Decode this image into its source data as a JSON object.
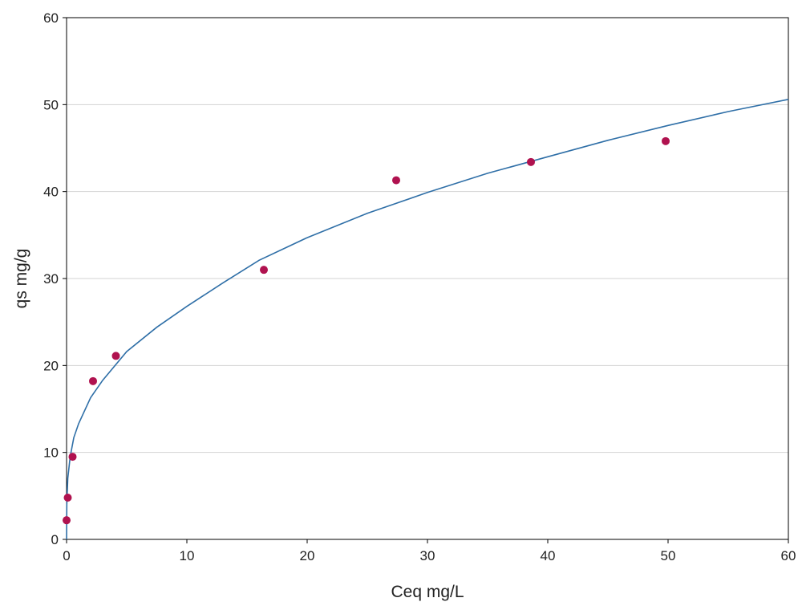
{
  "chart_data": {
    "type": "scatter",
    "xlabel": "Ceq mg/L",
    "ylabel": "qs mg/g",
    "xlim": [
      0,
      60
    ],
    "ylim": [
      0,
      60
    ],
    "xticks": [
      "0",
      "10",
      "20",
      "30",
      "40",
      "50",
      "60"
    ],
    "yticks": [
      "0",
      "10",
      "20",
      "30",
      "40",
      "50",
      "60"
    ],
    "grid": "horizontal",
    "legend": "none",
    "series": [
      {
        "kind": "points",
        "color": "#b0124f",
        "points": [
          [
            0.0,
            2.2
          ],
          [
            0.1,
            4.8
          ],
          [
            0.5,
            9.5
          ],
          [
            2.2,
            18.2
          ],
          [
            4.1,
            21.1
          ],
          [
            16.4,
            31.0
          ],
          [
            27.4,
            41.3
          ],
          [
            38.6,
            43.4
          ],
          [
            49.8,
            45.8
          ]
        ]
      },
      {
        "kind": "curve",
        "color": "#2f6fa7",
        "points": [
          [
            0.0,
            0.0
          ],
          [
            0.02,
            4.0
          ],
          [
            0.1,
            7.0
          ],
          [
            0.3,
            9.5
          ],
          [
            0.6,
            11.7
          ],
          [
            1.0,
            13.3
          ],
          [
            2.0,
            16.3
          ],
          [
            3.0,
            18.3
          ],
          [
            5.0,
            21.6
          ],
          [
            7.5,
            24.4
          ],
          [
            10.0,
            26.8
          ],
          [
            13.0,
            29.5
          ],
          [
            16.0,
            32.1
          ],
          [
            20.0,
            34.7
          ],
          [
            25.0,
            37.5
          ],
          [
            30.0,
            39.9
          ],
          [
            35.0,
            42.1
          ],
          [
            40.0,
            44.0
          ],
          [
            45.0,
            45.9
          ],
          [
            50.0,
            47.6
          ],
          [
            55.0,
            49.2
          ],
          [
            60.0,
            50.6
          ]
        ]
      }
    ]
  }
}
